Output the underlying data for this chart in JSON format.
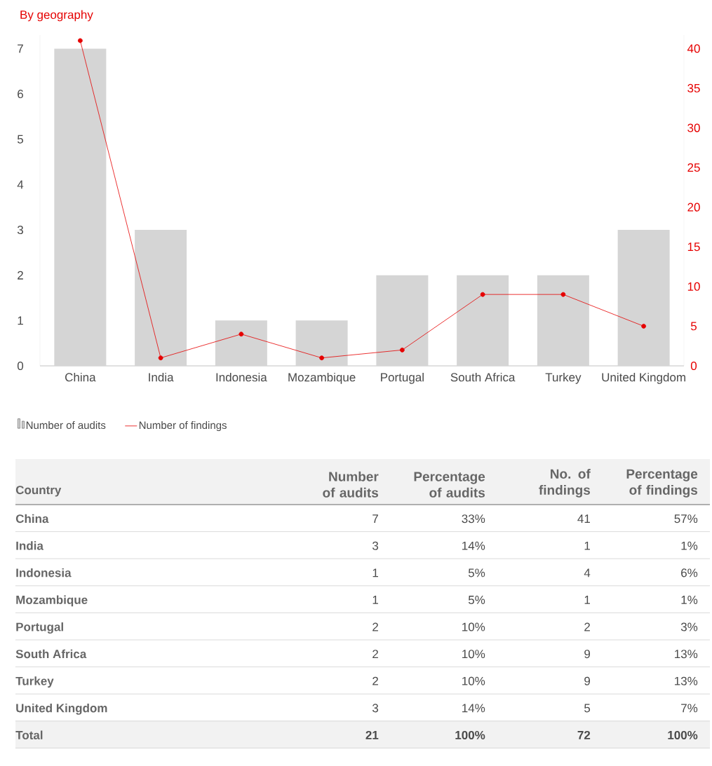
{
  "chart_data": [
    {
      "type": "bar",
      "title": "By geography",
      "categories": [
        "China",
        "India",
        "Indonesia",
        "Mozambique",
        "Portugal",
        "South Africa",
        "Turkey",
        "United Kingdom"
      ],
      "series": [
        {
          "name": "Number of audits",
          "type": "bar",
          "color": "#d5d5d5",
          "values": [
            7,
            3,
            1,
            1,
            2,
            2,
            2,
            3
          ]
        },
        {
          "name": "Number of findings",
          "type": "line",
          "axis": "y2",
          "color": "#e60000",
          "marker": "circle",
          "values": [
            41,
            1,
            4,
            1,
            2,
            9,
            9,
            5
          ]
        }
      ],
      "ylim": [
        0,
        7.3
      ],
      "yticks": [
        0,
        1,
        2,
        3,
        4,
        5,
        6,
        7
      ],
      "y2lim": [
        0,
        41.7
      ],
      "y2ticks": [
        0,
        5,
        10,
        15,
        20,
        25,
        30,
        35,
        40
      ],
      "grid": false,
      "legend": "bottom left"
    },
    {
      "type": "other",
      "xlabel": "Country",
      "data_labels": true,
      "categories": [
        "China",
        "India",
        "Indonesia",
        "Mozambique",
        "Portugal",
        "South Africa",
        "Turkey",
        "United Kingdom",
        "Total"
      ],
      "series": [
        {
          "name": "Number of audits",
          "values": [
            7,
            3,
            1,
            1,
            2,
            2,
            2,
            3,
            21
          ]
        },
        {
          "name": "Percentage of audits",
          "values": [
            33,
            14,
            5,
            5,
            10,
            10,
            10,
            14,
            100
          ],
          "value_labels": [
            "33%",
            "14%",
            "5%",
            "5%",
            "10%",
            "10%",
            "10%",
            "14%",
            "100%"
          ]
        },
        {
          "name": "No. of findings",
          "values": [
            41,
            1,
            4,
            1,
            2,
            9,
            9,
            5,
            72
          ]
        },
        {
          "name": "Percentage of findings",
          "values": [
            57,
            1,
            6,
            1,
            3,
            13,
            13,
            7,
            100
          ],
          "value_labels": [
            "57%",
            "1%",
            "6%",
            "1%",
            "3%",
            "13%",
            "13%",
            "7%",
            "100%"
          ]
        }
      ]
    }
  ]
}
